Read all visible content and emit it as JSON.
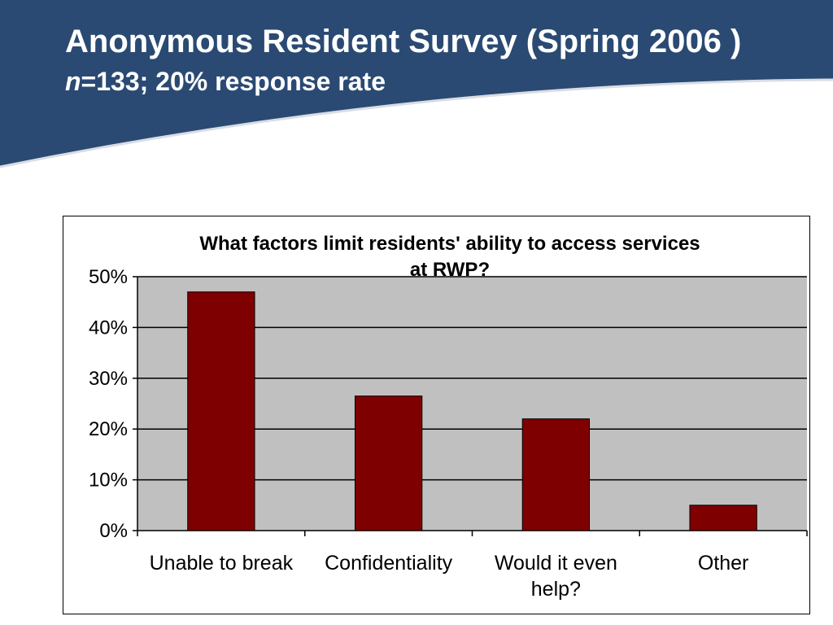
{
  "slide": {
    "title": "Anonymous Resident Survey (Spring 2006 )",
    "subtitle_n": "n",
    "subtitle_rest": "=133; 20% response rate",
    "banner_color": "#2a4a73"
  },
  "chart_data": {
    "type": "bar",
    "title_lines": [
      "What factors limit  residents' ability  to access services",
      "at RWP?"
    ],
    "categories": [
      [
        "Unable to break"
      ],
      [
        "Confidentiality"
      ],
      [
        "Would it even",
        "help?"
      ],
      [
        "Other"
      ]
    ],
    "values": [
      47,
      26.5,
      22,
      5
    ],
    "y_ticks": [
      "0%",
      "10%",
      "20%",
      "30%",
      "40%",
      "50%"
    ],
    "ylim": [
      0,
      50
    ],
    "grid": true,
    "bar_color": "#7f0000",
    "plot_bg": "#c0c0c0",
    "xlabel": "",
    "ylabel": ""
  }
}
